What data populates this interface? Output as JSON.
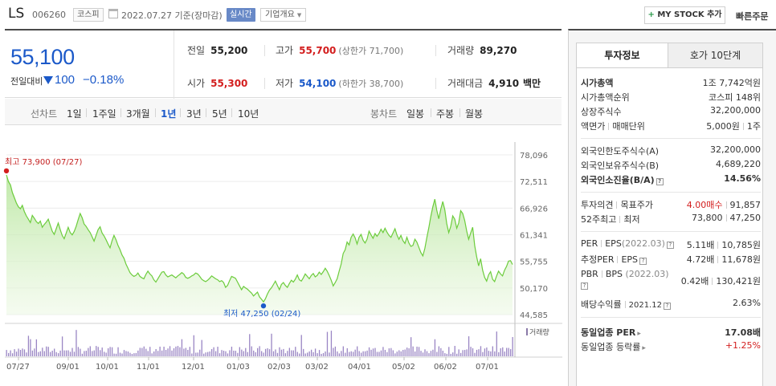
{
  "header": {
    "name": "LS",
    "code": "006260",
    "market": "코스피",
    "date": "2022.07.27  기준(장마감)",
    "realtime": "실시간",
    "overview": "기업개요",
    "mystock_plus": "+",
    "mystock": "MY STOCK 추가",
    "quick_order": "빠른주문"
  },
  "price": {
    "current": "55,100",
    "change_label": "전일대비",
    "change": "100",
    "change_pct": "−0.18%",
    "prev_close_label": "전일",
    "prev_close": "55,200",
    "high_label": "고가",
    "high": "55,700",
    "upper_limit_label": "(상한가",
    "upper_limit": "71,700)",
    "volume_label": "거래량",
    "volume": "89,270",
    "open_label": "시가",
    "open": "55,300",
    "low_label": "저가",
    "low": "54,100",
    "lower_limit_label": "(하한가",
    "lower_limit": "38,700)",
    "amount_label": "거래대금",
    "amount": "4,910",
    "amount_unit": "백만"
  },
  "tabs": {
    "line_label": "선차트",
    "line_periods": [
      "1일",
      "1주일",
      "3개월",
      "1년",
      "3년",
      "5년",
      "10년"
    ],
    "active": "1년",
    "candle_label": "봉차트",
    "candle_periods": [
      "일봉",
      "주봉",
      "월봉"
    ]
  },
  "chart_data": {
    "type": "area",
    "x_ticks": [
      "07/27",
      "09/01",
      "10/01",
      "11/01",
      "12/01",
      "01/03",
      "02/03",
      "03/02",
      "04/01",
      "05/02",
      "06/02",
      "07/01"
    ],
    "y_ticks": [
      "78,096",
      "72,511",
      "66,926",
      "61,341",
      "55,755",
      "50,170",
      "44,585"
    ],
    "ylim": [
      44585,
      78096
    ],
    "high_annotation": "최고 73,900 (07/27)",
    "low_annotation": "최저 47,250 (02/24)",
    "volume_label": "거래량",
    "series": [
      {
        "values": [
          73900,
          72500,
          71800,
          70200,
          69100,
          68000,
          67200,
          66800,
          67500,
          66200,
          65300,
          64600,
          63900,
          65400,
          64800,
          64100,
          63700,
          64200,
          62900,
          63500,
          64000,
          64600,
          63300,
          62100,
          61400,
          62600,
          63800,
          62400,
          61200,
          60500,
          61700,
          62900,
          61800,
          61300,
          62000,
          63100,
          64500,
          65800,
          64900,
          63600,
          63100,
          62400,
          61800,
          60900,
          60000,
          61200,
          62400,
          63000,
          61700,
          61100,
          60300,
          59400,
          58600,
          60100,
          61200,
          60300,
          59100,
          58200,
          57100,
          56400,
          55200,
          54300,
          53400,
          52900,
          52600,
          52800,
          53300,
          52600,
          52300,
          52100,
          53000,
          53700,
          53100,
          52700,
          51900,
          51400,
          52100,
          52800,
          53500,
          53600,
          52900,
          52500,
          52700,
          52900,
          52600,
          52300,
          52700,
          53000,
          53400,
          53100,
          52400,
          52200,
          52400,
          52700,
          52900,
          53300,
          53100,
          52600,
          52000,
          51700,
          51500,
          51800,
          52200,
          52700,
          52400,
          52100,
          51900,
          51500,
          51700,
          51300,
          50300,
          50700,
          51700,
          52600,
          52400,
          52200,
          51400,
          50600,
          49800,
          50500,
          50200,
          49900,
          49500,
          49100,
          48500,
          48900,
          49300,
          48300,
          47800,
          47250,
          47900,
          48900,
          49700,
          50200,
          50900,
          51600,
          50700,
          49800,
          50900,
          51300,
          50700,
          50300,
          51100,
          51800,
          51400,
          52000,
          52900,
          51900,
          51600,
          52300,
          53100,
          52600,
          52100,
          52800,
          53200,
          52500,
          52800,
          53500,
          53000,
          53600,
          54300,
          53700,
          52800,
          51800,
          50600,
          51300,
          52100,
          53700,
          55200,
          57400,
          58200,
          59800,
          59200,
          60800,
          61500,
          60700,
          59400,
          60800,
          61400,
          60200,
          59600,
          60400,
          62100,
          61300,
          60600,
          61600,
          61000,
          61600,
          62500,
          61800,
          62700,
          61900,
          61200,
          60800,
          61700,
          62600,
          61300,
          60400,
          61200,
          60100,
          59500,
          60800,
          59600,
          58900,
          59100,
          60400,
          59800,
          58700,
          57600,
          56900,
          58500,
          60700,
          62800,
          65200,
          67200,
          68800,
          66500,
          64700,
          66700,
          68300,
          66600,
          63700,
          61800,
          63100,
          65300,
          64600,
          62700,
          63800,
          66400,
          65800,
          64300,
          62100,
          60400,
          61700,
          62900,
          59100,
          56700,
          54800,
          56300,
          53900,
          52400,
          51600,
          52900,
          53600,
          52000,
          51500,
          52700,
          53700,
          53100,
          52700,
          53900,
          54700,
          55800,
          55900,
          55100
        ]
      }
    ]
  },
  "right_panel": {
    "tab_active": "투자정보",
    "tab_other": "호가 10단계",
    "market_cap_label": "시가총액",
    "market_cap": "1조 7,742억원",
    "market_cap_rank_label": "시가총액순위",
    "market_cap_rank_mkt": "코스피",
    "market_cap_rank": "148위",
    "shares_label": "상장주식수",
    "shares": "32,200,000",
    "par_label": "액면가",
    "unit_label": "매매단위",
    "par": "5,000원",
    "unit": "1주",
    "foreign_limit_label": "외국인한도주식수(A)",
    "foreign_limit": "32,200,000",
    "foreign_hold_label": "외국인보유주식수(B)",
    "foreign_hold": "4,689,220",
    "foreign_ratio_label": "외국인소진율(B/A)",
    "foreign_ratio": "14.56%",
    "opinion_label": "투자의견",
    "target_label": "목표주가",
    "opinion": "4.00매수",
    "target": "91,857",
    "w52_label": "52주최고",
    "w52_low_label": "최저",
    "w52_high": "73,800",
    "w52_low": "47,250",
    "per_label": "PER",
    "eps_label": "EPS",
    "eps_date": "(2022.03)",
    "per": "5.11배",
    "eps": "10,785원",
    "eper_label": "추정PER",
    "eeps_label": "EPS",
    "eper": "4.72배",
    "eeps": "11,678원",
    "pbr_label": "PBR",
    "bps_label": "BPS",
    "bps_date": "(2022.03)",
    "pbr": "0.42배",
    "bps": "130,421원",
    "div_label": "배당수익률",
    "div_date": "2021.12",
    "div": "2.63%",
    "ind_per_label": "동일업종 PER",
    "ind_per": "17.08배",
    "ind_rate_label": "동일업종 등락률",
    "ind_rate": "+1.25%"
  }
}
